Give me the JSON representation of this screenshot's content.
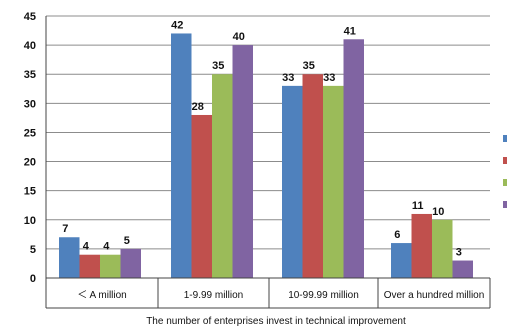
{
  "chart_data": {
    "type": "bar",
    "title": "",
    "xlabel": "The number of enterprises invest in technical improvement",
    "ylabel": "",
    "ylim": [
      0,
      45
    ],
    "yticks": [
      0,
      5,
      10,
      15,
      20,
      25,
      30,
      35,
      40,
      45
    ],
    "grid": true,
    "legend": "right",
    "categories": [
      "＜ A million",
      "1-9.99 million",
      "10-99.99 million",
      "Over a hundred million"
    ],
    "series": [
      {
        "color": "#4f81bd",
        "values": [
          7,
          42,
          33,
          6
        ]
      },
      {
        "color": "#c0504d",
        "values": [
          4,
          28,
          35,
          11
        ]
      },
      {
        "color": "#9bbb59",
        "values": [
          4,
          35,
          33,
          10
        ]
      },
      {
        "color": "#8064a2",
        "values": [
          5,
          40,
          41,
          3
        ]
      }
    ]
  }
}
